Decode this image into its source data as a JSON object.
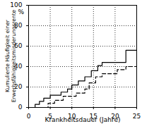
{
  "chart_data": {
    "type": "line",
    "x_label": "Krankheitsdauer (Jahre)",
    "y_label": "Kumulierte Häufigkeit einer\nErwerbsfähigkeitsminderungsrente",
    "annotations": [
      "%"
    ],
    "xlim": [
      0,
      25
    ],
    "xticks": [
      0,
      5,
      10,
      15,
      20,
      25
    ],
    "ylim": [
      0,
      100
    ],
    "yticks": [
      0,
      20,
      40,
      60,
      80,
      100
    ],
    "grid": true,
    "series": [
      {
        "color": "#000000",
        "line_style": "solid",
        "x": [
          0,
          1.5,
          2.5,
          3.5,
          5,
          7.5,
          9,
          10,
          11.5,
          13,
          14.5,
          16,
          17,
          22.5,
          25
        ],
        "values": [
          0,
          3,
          6,
          9,
          12,
          15,
          18,
          22,
          26,
          30,
          36,
          41,
          44,
          56,
          56
        ]
      },
      {
        "color": "#000000",
        "line_style": "dashed",
        "x": [
          0,
          4.5,
          6,
          8,
          11,
          13,
          14,
          15.5,
          17,
          20.5,
          22.5,
          25
        ],
        "values": [
          0,
          4,
          7,
          11,
          14,
          18,
          24,
          30,
          33,
          37,
          40,
          40
        ]
      }
    ]
  }
}
